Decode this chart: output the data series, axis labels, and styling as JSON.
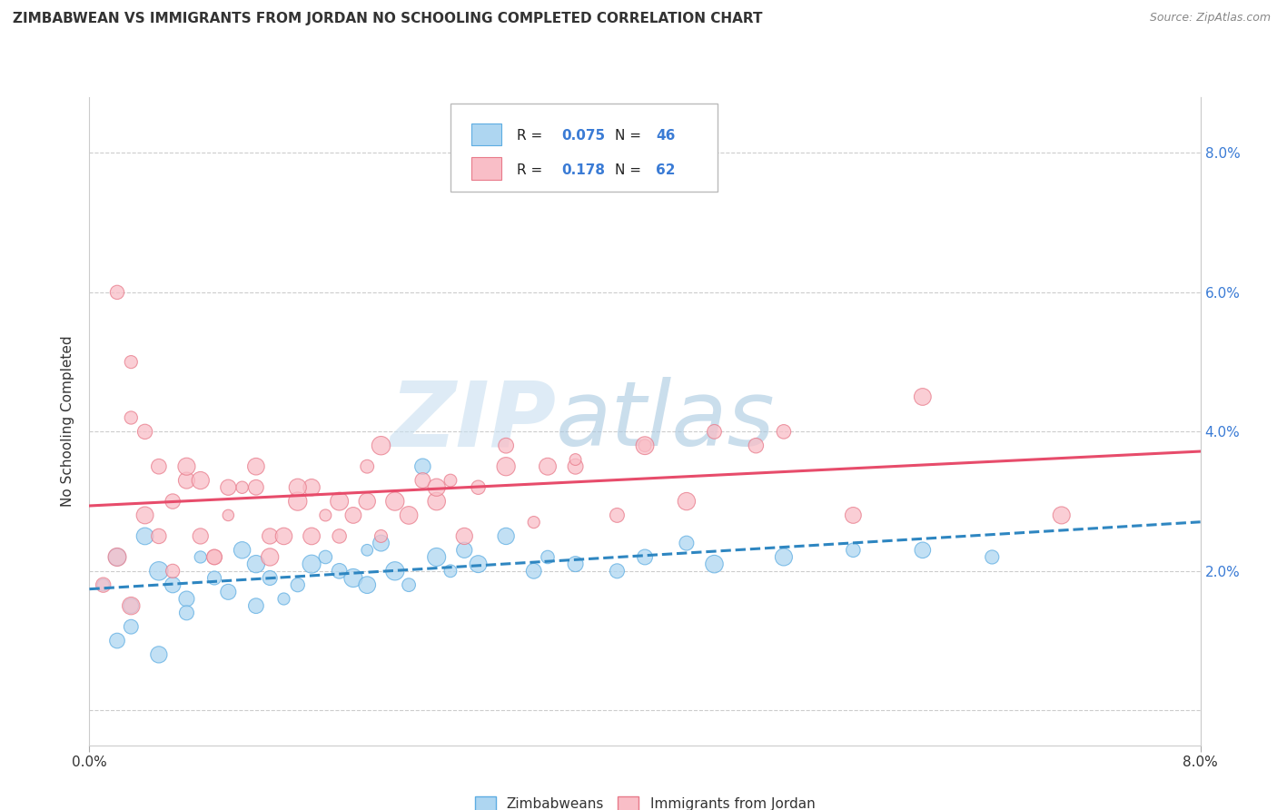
{
  "title": "ZIMBABWEAN VS IMMIGRANTS FROM JORDAN NO SCHOOLING COMPLETED CORRELATION CHART",
  "source": "Source: ZipAtlas.com",
  "ylabel": "No Schooling Completed",
  "xlim": [
    0.0,
    0.08
  ],
  "ylim": [
    -0.005,
    0.088
  ],
  "ytick_vals": [
    0.0,
    0.02,
    0.04,
    0.06,
    0.08
  ],
  "ytick_labels": [
    "",
    "2.0%",
    "4.0%",
    "6.0%",
    "8.0%"
  ],
  "xtick_vals": [
    0.0,
    0.08
  ],
  "xtick_labels": [
    "0.0%",
    "8.0%"
  ],
  "legend_r1": "0.075",
  "legend_n1": "46",
  "legend_r2": "0.178",
  "legend_n2": "62",
  "color_zim_fill": "#aed6f1",
  "color_zim_edge": "#5dade2",
  "color_jordan_fill": "#f9bec7",
  "color_jordan_edge": "#e87a8a",
  "color_trend_zim": "#2e86c1",
  "color_trend_jordan": "#e74c6b",
  "watermark_zim_color": "#c8dff0",
  "watermark_atlas_color": "#a8c8e0",
  "grid_color": "#cccccc",
  "bg_color": "#ffffff",
  "text_color": "#333333",
  "axis_label_color": "#3a7bd5",
  "title_fontsize": 11,
  "label_fontsize": 11,
  "tick_fontsize": 11,
  "zim_x": [
    0.001,
    0.002,
    0.003,
    0.004,
    0.005,
    0.006,
    0.007,
    0.008,
    0.009,
    0.01,
    0.011,
    0.012,
    0.013,
    0.014,
    0.015,
    0.016,
    0.017,
    0.018,
    0.019,
    0.02,
    0.021,
    0.022,
    0.023,
    0.024,
    0.025,
    0.026,
    0.027,
    0.028,
    0.03,
    0.032,
    0.033,
    0.035,
    0.038,
    0.04,
    0.043,
    0.045,
    0.05,
    0.055,
    0.06,
    0.065,
    0.002,
    0.003,
    0.005,
    0.007,
    0.012,
    0.02
  ],
  "zim_y": [
    0.018,
    0.022,
    0.015,
    0.025,
    0.02,
    0.018,
    0.016,
    0.022,
    0.019,
    0.017,
    0.023,
    0.021,
    0.019,
    0.016,
    0.018,
    0.021,
    0.022,
    0.02,
    0.019,
    0.023,
    0.024,
    0.02,
    0.018,
    0.035,
    0.022,
    0.02,
    0.023,
    0.021,
    0.025,
    0.02,
    0.022,
    0.021,
    0.02,
    0.022,
    0.024,
    0.021,
    0.022,
    0.023,
    0.023,
    0.022,
    0.01,
    0.012,
    0.008,
    0.014,
    0.015,
    0.018
  ],
  "jordan_x": [
    0.001,
    0.002,
    0.003,
    0.004,
    0.005,
    0.006,
    0.007,
    0.008,
    0.009,
    0.01,
    0.011,
    0.012,
    0.013,
    0.014,
    0.015,
    0.016,
    0.017,
    0.018,
    0.019,
    0.02,
    0.021,
    0.022,
    0.023,
    0.024,
    0.025,
    0.026,
    0.028,
    0.03,
    0.033,
    0.035,
    0.04,
    0.045,
    0.05,
    0.002,
    0.003,
    0.004,
    0.005,
    0.007,
    0.008,
    0.01,
    0.012,
    0.015,
    0.018,
    0.02,
    0.025,
    0.03,
    0.035,
    0.04,
    0.006,
    0.009,
    0.013,
    0.016,
    0.021,
    0.027,
    0.032,
    0.038,
    0.043,
    0.048,
    0.055,
    0.06,
    0.003,
    0.07
  ],
  "jordan_y": [
    0.018,
    0.022,
    0.042,
    0.028,
    0.025,
    0.03,
    0.033,
    0.025,
    0.022,
    0.028,
    0.032,
    0.035,
    0.025,
    0.025,
    0.03,
    0.032,
    0.028,
    0.025,
    0.028,
    0.035,
    0.038,
    0.03,
    0.028,
    0.033,
    0.03,
    0.033,
    0.032,
    0.038,
    0.035,
    0.035,
    0.038,
    0.04,
    0.04,
    0.06,
    0.05,
    0.04,
    0.035,
    0.035,
    0.033,
    0.032,
    0.032,
    0.032,
    0.03,
    0.03,
    0.032,
    0.035,
    0.036,
    0.038,
    0.02,
    0.022,
    0.022,
    0.025,
    0.025,
    0.025,
    0.027,
    0.028,
    0.03,
    0.038,
    0.028,
    0.045,
    0.015,
    0.028
  ]
}
